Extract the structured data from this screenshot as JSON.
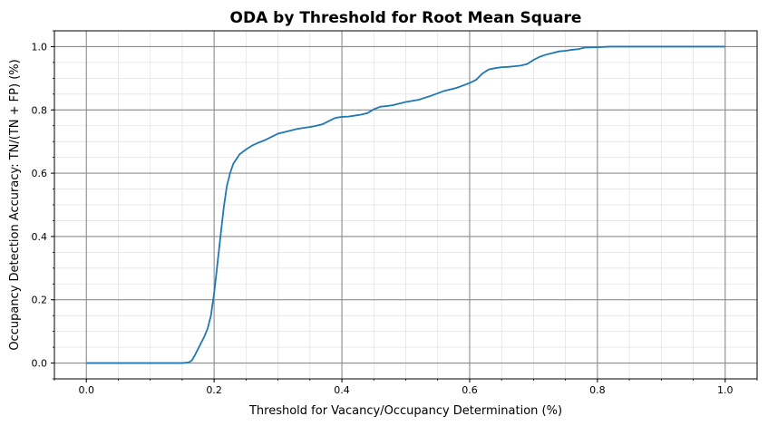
{
  "chart_data": {
    "type": "line",
    "title": "ODA by Threshold for Root Mean Square",
    "xlabel": "Threshold for Vacancy/Occupancy Determination (%)",
    "ylabel": "Occupancy Detection Accuracy: TN/(TN + FP) (%)",
    "xlim": [
      -0.05,
      1.05
    ],
    "ylim": [
      -0.05,
      1.05
    ],
    "xticks": [
      "0.0",
      "0.2",
      "0.4",
      "0.6",
      "0.8",
      "1.0"
    ],
    "yticks": [
      "0.0",
      "0.2",
      "0.4",
      "0.6",
      "0.8",
      "1.0"
    ],
    "grid": true,
    "minor_grid": true,
    "line_color": "#1f77b4",
    "series": [
      {
        "x": [
          0.0,
          0.05,
          0.1,
          0.15,
          0.16,
          0.165,
          0.17,
          0.175,
          0.18,
          0.185,
          0.19,
          0.195,
          0.2,
          0.205,
          0.21,
          0.215,
          0.22,
          0.225,
          0.23,
          0.235,
          0.24,
          0.25,
          0.26,
          0.27,
          0.28,
          0.29,
          0.3,
          0.31,
          0.32,
          0.33,
          0.34,
          0.35,
          0.36,
          0.37,
          0.38,
          0.39,
          0.4,
          0.41,
          0.42,
          0.43,
          0.44,
          0.45,
          0.46,
          0.47,
          0.48,
          0.49,
          0.5,
          0.52,
          0.54,
          0.56,
          0.58,
          0.6,
          0.61,
          0.62,
          0.63,
          0.64,
          0.65,
          0.66,
          0.67,
          0.68,
          0.69,
          0.7,
          0.71,
          0.72,
          0.73,
          0.74,
          0.75,
          0.76,
          0.77,
          0.78,
          0.8,
          0.82,
          0.85,
          0.9,
          1.0
        ],
        "y": [
          0.0,
          0.0,
          0.0,
          0.0,
          0.002,
          0.008,
          0.025,
          0.045,
          0.065,
          0.085,
          0.11,
          0.15,
          0.22,
          0.31,
          0.4,
          0.49,
          0.56,
          0.6,
          0.63,
          0.645,
          0.66,
          0.675,
          0.688,
          0.697,
          0.705,
          0.715,
          0.725,
          0.73,
          0.735,
          0.74,
          0.743,
          0.746,
          0.75,
          0.755,
          0.765,
          0.775,
          0.778,
          0.779,
          0.782,
          0.785,
          0.79,
          0.802,
          0.81,
          0.812,
          0.815,
          0.82,
          0.825,
          0.832,
          0.845,
          0.86,
          0.87,
          0.885,
          0.895,
          0.915,
          0.928,
          0.932,
          0.935,
          0.936,
          0.938,
          0.94,
          0.945,
          0.958,
          0.968,
          0.975,
          0.98,
          0.985,
          0.987,
          0.99,
          0.992,
          0.997,
          0.998,
          1.0,
          1.0,
          1.0,
          1.0
        ]
      }
    ]
  }
}
